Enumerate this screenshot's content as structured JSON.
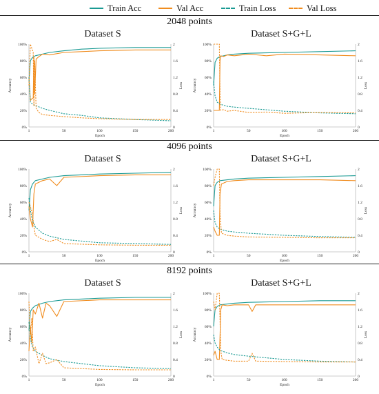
{
  "legend": [
    {
      "label": "Train Acc",
      "color": "#1a9a93",
      "dashed": false
    },
    {
      "label": "Val Acc",
      "color": "#f08c1e",
      "dashed": false
    },
    {
      "label": "Train Loss",
      "color": "#1a9a93",
      "dashed": true
    },
    {
      "label": "Val Loss",
      "color": "#f08c1e",
      "dashed": true
    }
  ],
  "sections": [
    {
      "title": "2048 points",
      "left_title": "Dataset S",
      "right_title": "Dataset S+G+L"
    },
    {
      "title": "4096 points",
      "left_title": "Dataset S",
      "right_title": "Dataset S+G+L"
    },
    {
      "title": "8192 points",
      "left_title": "Dataset S",
      "right_title": "Dataset S+G+L"
    }
  ],
  "chart_data": [
    {
      "type": "line",
      "section": "2048 points",
      "dataset": "Dataset S",
      "xlabel": "Epoch",
      "ylabel_left": "Accuracy",
      "ylabel_right": "Loss",
      "xticks": [
        1,
        50,
        100,
        150,
        200
      ],
      "xlim": [
        1,
        200
      ],
      "yticks_left": [
        "0%",
        "20%",
        "40%",
        "60%",
        "80%",
        "100%"
      ],
      "ylim_left": [
        0,
        100
      ],
      "yticks_right": [
        "0",
        "0.4",
        "0.8",
        "1.2",
        "1.6",
        "2"
      ],
      "ylim_right": [
        0,
        2
      ],
      "series": [
        {
          "name": "Train Acc",
          "axis": "left",
          "x": [
            1,
            3,
            6,
            10,
            20,
            30,
            50,
            75,
            100,
            150,
            200
          ],
          "y": [
            55,
            80,
            84,
            86,
            88,
            90,
            92,
            94,
            95,
            96,
            96
          ]
        },
        {
          "name": "Val Acc",
          "axis": "left",
          "x": [
            1,
            3,
            5,
            7,
            8,
            9,
            11,
            15,
            20,
            30,
            50,
            75,
            100,
            150,
            200
          ],
          "y": [
            60,
            32,
            34,
            35,
            85,
            40,
            82,
            85,
            88,
            87,
            90,
            91,
            92,
            93,
            93
          ]
        },
        {
          "name": "Train Loss",
          "axis": "right",
          "x": [
            1,
            3,
            6,
            10,
            20,
            30,
            50,
            75,
            100,
            150,
            200
          ],
          "y": [
            1.2,
            0.6,
            0.55,
            0.52,
            0.45,
            0.4,
            0.32,
            0.28,
            0.22,
            0.18,
            0.15
          ]
        },
        {
          "name": "Val Loss",
          "axis": "right",
          "x": [
            1,
            3,
            5,
            7,
            8,
            9,
            11,
            15,
            20,
            30,
            50,
            75,
            100,
            150,
            200
          ],
          "y": [
            1.0,
            2.0,
            1.9,
            1.8,
            0.5,
            1.6,
            0.45,
            0.35,
            0.3,
            0.28,
            0.25,
            0.22,
            0.2,
            0.18,
            0.18
          ]
        }
      ]
    },
    {
      "type": "line",
      "section": "2048 points",
      "dataset": "Dataset S+G+L",
      "xlabel": "Epoch",
      "ylabel_left": "Accuracy",
      "ylabel_right": "Loss",
      "xticks": [
        1,
        50,
        100,
        150,
        200
      ],
      "xlim": [
        1,
        200
      ],
      "yticks_left": [
        "0%",
        "20%",
        "40%",
        "60%",
        "80%",
        "100%"
      ],
      "ylim_left": [
        0,
        100
      ],
      "yticks_right": [
        "0",
        "0.4",
        "0.8",
        "1.2",
        "1.6",
        "2"
      ],
      "ylim_right": [
        0,
        2
      ],
      "series": [
        {
          "name": "Train Acc",
          "axis": "left",
          "x": [
            1,
            3,
            6,
            10,
            20,
            30,
            50,
            100,
            150,
            200
          ],
          "y": [
            50,
            78,
            83,
            85,
            87,
            88,
            89,
            90,
            91,
            92
          ]
        },
        {
          "name": "Val Acc",
          "axis": "left",
          "x": [
            1,
            5,
            9,
            10,
            11,
            15,
            20,
            30,
            50,
            75,
            100,
            150,
            200
          ],
          "y": [
            20,
            20,
            20,
            80,
            86,
            85,
            87,
            86,
            88,
            86,
            88,
            87,
            86
          ]
        },
        {
          "name": "Train Loss",
          "axis": "right",
          "x": [
            1,
            3,
            6,
            10,
            20,
            30,
            50,
            100,
            150,
            200
          ],
          "y": [
            1.1,
            0.75,
            0.6,
            0.55,
            0.5,
            0.48,
            0.45,
            0.38,
            0.34,
            0.32
          ]
        },
        {
          "name": "Val Loss",
          "axis": "right",
          "x": [
            1,
            5,
            9,
            10,
            11,
            15,
            20,
            30,
            50,
            75,
            100,
            150,
            200
          ],
          "y": [
            2.0,
            2.0,
            2.0,
            0.8,
            0.4,
            0.42,
            0.38,
            0.4,
            0.35,
            0.36,
            0.33,
            0.35,
            0.34
          ]
        }
      ]
    },
    {
      "type": "line",
      "section": "4096 points",
      "dataset": "Dataset S",
      "xlabel": "Epoch",
      "ylabel_left": "Accuracy",
      "ylabel_right": "Loss",
      "xticks": [
        1,
        50,
        100,
        150,
        200
      ],
      "xlim": [
        1,
        200
      ],
      "yticks_left": [
        "0%",
        "20%",
        "40%",
        "60%",
        "80%",
        "100%"
      ],
      "ylim_left": [
        0,
        100
      ],
      "yticks_right": [
        "0",
        "0.4",
        "0.8",
        "1.2",
        "1.6",
        "2"
      ],
      "ylim_right": [
        0,
        2
      ],
      "series": [
        {
          "name": "Train Acc",
          "axis": "left",
          "x": [
            1,
            3,
            6,
            10,
            20,
            30,
            50,
            100,
            150,
            200
          ],
          "y": [
            50,
            75,
            82,
            86,
            88,
            90,
            92,
            94,
            95,
            96
          ]
        },
        {
          "name": "Val Acc",
          "axis": "left",
          "x": [
            1,
            3,
            6,
            8,
            10,
            20,
            30,
            40,
            50,
            100,
            150,
            200
          ],
          "y": [
            55,
            40,
            30,
            70,
            82,
            86,
            88,
            80,
            90,
            92,
            93,
            93
          ]
        },
        {
          "name": "Train Loss",
          "axis": "right",
          "x": [
            1,
            3,
            6,
            10,
            20,
            30,
            50,
            100,
            150,
            200
          ],
          "y": [
            1.3,
            1.0,
            0.75,
            0.6,
            0.45,
            0.38,
            0.3,
            0.22,
            0.2,
            0.18
          ]
        },
        {
          "name": "Val Loss",
          "axis": "right",
          "x": [
            1,
            3,
            6,
            8,
            10,
            20,
            30,
            40,
            50,
            100,
            150,
            200
          ],
          "y": [
            1.2,
            1.1,
            0.9,
            0.6,
            0.4,
            0.3,
            0.25,
            0.3,
            0.2,
            0.17,
            0.16,
            0.16
          ]
        }
      ]
    },
    {
      "type": "line",
      "section": "4096 points",
      "dataset": "Dataset S+G+L",
      "xlabel": "Epoch",
      "ylabel_left": "Accuracy",
      "ylabel_right": "Loss",
      "xticks": [
        1,
        50,
        100,
        150,
        200
      ],
      "xlim": [
        1,
        200
      ],
      "yticks_left": [
        "0%",
        "20%",
        "40%",
        "60%",
        "80%",
        "100%"
      ],
      "ylim_left": [
        0,
        100
      ],
      "yticks_right": [
        "0",
        "0.4",
        "0.8",
        "1.2",
        "1.6",
        "2"
      ],
      "ylim_right": [
        0,
        2
      ],
      "series": [
        {
          "name": "Train Acc",
          "axis": "left",
          "x": [
            1,
            3,
            6,
            10,
            20,
            30,
            50,
            100,
            150,
            200
          ],
          "y": [
            55,
            80,
            84,
            86,
            87,
            88,
            89,
            90,
            91,
            92
          ]
        },
        {
          "name": "Val Acc",
          "axis": "left",
          "x": [
            1,
            3,
            6,
            9,
            10,
            12,
            20,
            30,
            50,
            100,
            150,
            200
          ],
          "y": [
            30,
            25,
            20,
            20,
            70,
            82,
            85,
            86,
            87,
            87,
            87,
            86
          ]
        },
        {
          "name": "Train Loss",
          "axis": "right",
          "x": [
            1,
            3,
            6,
            10,
            20,
            30,
            50,
            100,
            150,
            200
          ],
          "y": [
            1.0,
            0.7,
            0.6,
            0.55,
            0.5,
            0.48,
            0.45,
            0.4,
            0.37,
            0.35
          ]
        },
        {
          "name": "Val Loss",
          "axis": "right",
          "x": [
            1,
            3,
            6,
            9,
            10,
            12,
            20,
            30,
            50,
            100,
            150,
            200
          ],
          "y": [
            1.6,
            1.8,
            2.0,
            2.0,
            0.9,
            0.45,
            0.4,
            0.38,
            0.36,
            0.35,
            0.34,
            0.34
          ]
        }
      ]
    },
    {
      "type": "line",
      "section": "8192 points",
      "dataset": "Dataset S",
      "xlabel": "Epoch",
      "ylabel_left": "Accuracy",
      "ylabel_right": "Loss",
      "xticks": [
        1,
        50,
        100,
        150,
        200
      ],
      "xlim": [
        1,
        200
      ],
      "yticks_left": [
        "0%",
        "20%",
        "40%",
        "60%",
        "80%",
        "100%"
      ],
      "ylim_left": [
        0,
        100
      ],
      "yticks_right": [
        "0",
        "0.4",
        "0.8",
        "1.2",
        "1.6",
        "2"
      ],
      "ylim_right": [
        0,
        2
      ],
      "series": [
        {
          "name": "Train Acc",
          "axis": "left",
          "x": [
            1,
            3,
            6,
            10,
            20,
            30,
            50,
            100,
            150,
            200
          ],
          "y": [
            55,
            78,
            82,
            85,
            88,
            90,
            92,
            94,
            95,
            95
          ]
        },
        {
          "name": "Val Acc",
          "axis": "left",
          "x": [
            1,
            3,
            5,
            7,
            10,
            15,
            20,
            25,
            30,
            40,
            50,
            100,
            150,
            200
          ],
          "y": [
            30,
            60,
            40,
            80,
            75,
            88,
            70,
            88,
            85,
            72,
            90,
            92,
            92,
            92
          ]
        },
        {
          "name": "Train Loss",
          "axis": "right",
          "x": [
            1,
            3,
            6,
            10,
            20,
            30,
            50,
            100,
            150,
            200
          ],
          "y": [
            1.3,
            0.9,
            0.7,
            0.6,
            0.5,
            0.42,
            0.35,
            0.25,
            0.2,
            0.18
          ]
        },
        {
          "name": "Val Loss",
          "axis": "right",
          "x": [
            1,
            3,
            5,
            7,
            10,
            15,
            20,
            25,
            30,
            40,
            50,
            100,
            150,
            200
          ],
          "y": [
            1.8,
            1.0,
            1.4,
            0.6,
            0.7,
            0.3,
            0.55,
            0.3,
            0.32,
            0.4,
            0.2,
            0.16,
            0.15,
            0.15
          ]
        }
      ]
    },
    {
      "type": "line",
      "section": "8192 points",
      "dataset": "Dataset S+G+L",
      "xlabel": "Epoch",
      "ylabel_left": "Accuracy",
      "ylabel_right": "Loss",
      "xticks": [
        1,
        50,
        100,
        150,
        200
      ],
      "xlim": [
        1,
        200
      ],
      "yticks_left": [
        "0%",
        "20%",
        "40%",
        "60%",
        "80%",
        "100%"
      ],
      "ylim_left": [
        0,
        100
      ],
      "yticks_right": [
        "0",
        "0.4",
        "0.8",
        "1.2",
        "1.6",
        "2"
      ],
      "ylim_right": [
        0,
        2
      ],
      "series": [
        {
          "name": "Train Acc",
          "axis": "left",
          "x": [
            1,
            3,
            6,
            10,
            20,
            30,
            50,
            100,
            150,
            200
          ],
          "y": [
            60,
            80,
            84,
            86,
            87,
            88,
            89,
            90,
            91,
            91
          ]
        },
        {
          "name": "Val Acc",
          "axis": "left",
          "x": [
            1,
            3,
            6,
            9,
            11,
            13,
            20,
            30,
            50,
            55,
            60,
            100,
            150,
            200
          ],
          "y": [
            25,
            30,
            20,
            20,
            80,
            86,
            85,
            86,
            86,
            78,
            86,
            86,
            86,
            86
          ]
        },
        {
          "name": "Train Loss",
          "axis": "right",
          "x": [
            1,
            3,
            6,
            10,
            20,
            30,
            50,
            100,
            150,
            200
          ],
          "y": [
            1.0,
            0.8,
            0.7,
            0.62,
            0.56,
            0.52,
            0.48,
            0.4,
            0.36,
            0.34
          ]
        },
        {
          "name": "Val Loss",
          "axis": "right",
          "x": [
            1,
            3,
            6,
            9,
            11,
            13,
            20,
            30,
            50,
            55,
            60,
            100,
            150,
            200
          ],
          "y": [
            1.8,
            1.6,
            2.0,
            2.0,
            0.6,
            0.4,
            0.38,
            0.36,
            0.36,
            0.55,
            0.36,
            0.35,
            0.34,
            0.34
          ]
        }
      ]
    }
  ]
}
